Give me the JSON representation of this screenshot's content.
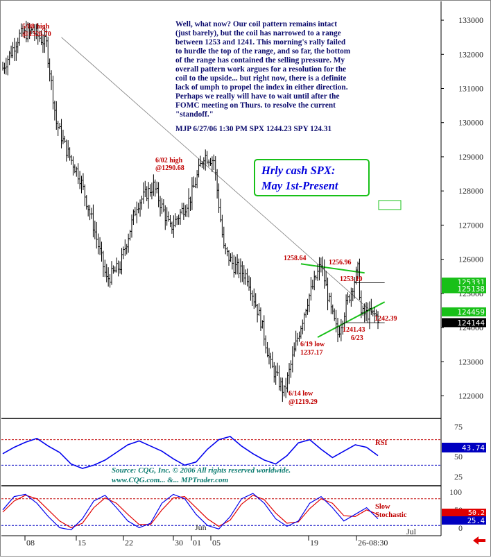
{
  "chart_data": {
    "type": "line",
    "title": "Hrly cash SPX:",
    "subtitle": "May 1st-Present",
    "commentary": [
      "Well, what now?  Our coil pattern remains intact",
      "(just barely), but the coil has narrowed to a range",
      "between 1253 and 1241. This morning's rally failed",
      "to hurdle the top of the range, and so far, the bottom",
      "of the range has contained the selling pressure. My",
      "overall pattern work argues for a resolution for the",
      "coil to the upside... but right now, there is a definite",
      "lack of umph to propel the index in either direction.",
      "Perhaps we really will have to wait until after the",
      "FOMC meeting on Thurs. to resolve the current",
      "\"standoff.\"",
      "MJP 6/27/06 1:30 PM SPX 1244.23  SPY 124.31"
    ],
    "source": [
      "Source: CQG, Inc. © 2006 All rights reserved worldwide.",
      "www.CQG.com... &... MPTrader.com"
    ],
    "price_axis": {
      "ticks": [
        "133000",
        "132000",
        "131000",
        "130000",
        "129000",
        "128000",
        "127000",
        "126000",
        "125000",
        "124000",
        "123000",
        "122000"
      ],
      "ylim": [
        121400,
        133550
      ]
    },
    "price_tags": [
      {
        "label": "125331",
        "value": 125331,
        "color": "#18c018"
      },
      {
        "label": "125138",
        "value": 125138,
        "color": "#18c018"
      },
      {
        "label": "124459",
        "value": 124459,
        "color": "#18c018"
      },
      {
        "label": "124144",
        "value": 124144,
        "color": "#000000"
      }
    ],
    "x_axis": {
      "ticks": [
        "08",
        "15",
        "22",
        "30",
        "01",
        "05",
        "19",
        "26-08:30"
      ],
      "month_labels": [
        "Jun",
        "Jul"
      ],
      "bar_count": 225
    },
    "annotations": [
      {
        "text": "5/08 high",
        "color": "#c00000"
      },
      {
        "text": "@1326.70",
        "color": "#c00000"
      },
      {
        "text": "6/02 high",
        "color": "#c00000"
      },
      {
        "text": "@1290.68",
        "color": "#c00000"
      },
      {
        "text": "1258.64",
        "color": "#c00000"
      },
      {
        "text": "1256.96",
        "color": "#c00000"
      },
      {
        "text": "1253.10",
        "color": "#c00000"
      },
      {
        "text": "1242.39",
        "color": "#c00000"
      },
      {
        "text": "1241.43",
        "color": "#c00000"
      },
      {
        "text": "6/23",
        "color": "#c00000"
      },
      {
        "text": "6/19 low",
        "color": "#c00000"
      },
      {
        "text": "1237.17",
        "color": "#c00000"
      },
      {
        "text": "6/14  low",
        "color": "#c00000"
      },
      {
        "text": "@1219.29",
        "color": "#c00000"
      }
    ],
    "price_series": {
      "name": "SPX hourly",
      "x_bar": [
        0,
        10,
        18,
        26,
        32,
        38,
        46,
        54,
        62,
        70,
        80,
        90,
        100,
        112,
        120,
        126,
        132,
        138,
        146,
        154,
        160,
        168,
        176,
        182,
        190,
        196,
        200,
        206,
        212,
        214,
        218,
        222,
        224
      ],
      "close": [
        131600,
        132550,
        132680,
        132300,
        130000,
        129200,
        128400,
        127000,
        125400,
        125800,
        127600,
        128150,
        126900,
        127800,
        129050,
        128900,
        126300,
        125800,
        125500,
        124200,
        122900,
        122100,
        123700,
        124800,
        125860,
        124500,
        123800,
        124800,
        125690,
        124400,
        124400,
        124380,
        124300
      ]
    },
    "trend_lines": [
      {
        "name": "downtrend",
        "x_bar": [
          35,
          224
        ],
        "y": [
          132500,
          124300
        ]
      },
      {
        "name": "coil_top",
        "x_bar": [
          178,
          216
        ],
        "y": [
          125864,
          125600
        ]
      },
      {
        "name": "coil_bottom",
        "x_bar": [
          188,
          228
        ],
        "y": [
          123717,
          124750
        ]
      },
      {
        "name": "range_1253",
        "x_bar": [
          210,
          228
        ],
        "y": [
          125310,
          125310
        ]
      },
      {
        "name": "range_1241",
        "x_bar": [
          205,
          228
        ],
        "y": [
          124143,
          124143
        ]
      }
    ],
    "rsi": {
      "label": "RSI",
      "ticks": [
        "75",
        "50",
        "25"
      ],
      "last_value": "43.74",
      "ylim": [
        0,
        100
      ],
      "overbought": 70,
      "oversold": 30,
      "values": [
        48,
        58,
        66,
        72,
        60,
        50,
        32,
        25,
        30,
        38,
        50,
        62,
        68,
        60,
        52,
        40,
        30,
        35,
        55,
        70,
        75,
        60,
        48,
        38,
        32,
        45,
        65,
        70,
        55,
        42,
        52,
        62,
        58,
        45
      ]
    },
    "stochastic": {
      "label": [
        "Slow",
        "Stochastic"
      ],
      "ticks": [
        "100",
        "50",
        "0"
      ],
      "last_values": [
        "50.2",
        "25.4"
      ],
      "ylim": [
        0,
        100
      ],
      "overbought": 80,
      "oversold": 20,
      "k": [
        55,
        85,
        90,
        70,
        40,
        15,
        10,
        35,
        75,
        88,
        60,
        30,
        15,
        25,
        70,
        90,
        80,
        45,
        20,
        12,
        40,
        80,
        92,
        70,
        35,
        18,
        30,
        70,
        85,
        60,
        30,
        45,
        60,
        35
      ],
      "d": [
        50,
        75,
        88,
        80,
        55,
        30,
        15,
        25,
        60,
        82,
        70,
        45,
        22,
        22,
        55,
        82,
        85,
        60,
        35,
        18,
        32,
        68,
        88,
        78,
        48,
        25,
        28,
        58,
        80,
        70,
        42,
        40,
        55,
        45
      ]
    }
  },
  "colors": {
    "price_bars": "#000000",
    "trendline": "#7a7a7a",
    "coil_lines": "#18c018",
    "rsi_line": "#0000ee",
    "stoch_k": "#0000ee",
    "stoch_d": "#e00000",
    "ref_red": "#c00000",
    "ref_blue": "#0000c0",
    "tag_text": "#ffffff",
    "callout_border": "#18c018",
    "callout_text": "#0000dd",
    "source_text": "#0b7b70"
  }
}
